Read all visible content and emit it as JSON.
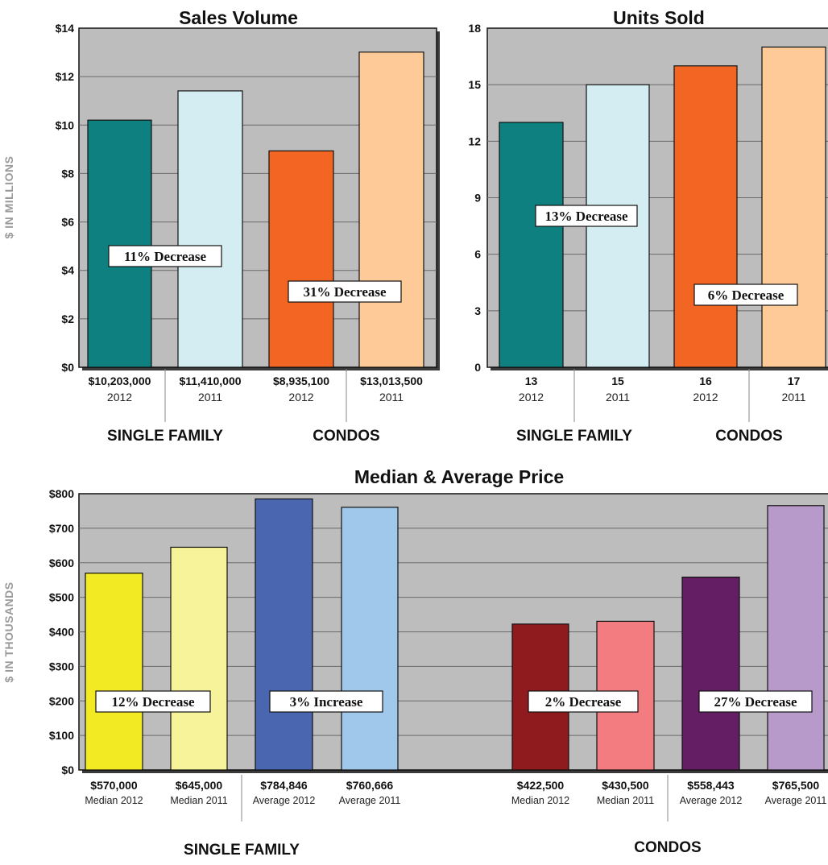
{
  "chart_data": [
    {
      "type": "bar",
      "title": "Sales Volume",
      "ylabel": "$ IN MILLIONS",
      "ylim": [
        0,
        14
      ],
      "yticks": [
        "$0",
        "$2",
        "$4",
        "$6",
        "$8",
        "$10",
        "$12",
        "$14"
      ],
      "grid": true,
      "values": [
        10.203,
        11.41,
        8.9351,
        13.0135
      ],
      "value_labels": [
        "$10,203,000",
        "$11,410,000",
        "$8,935,100",
        "$13,013,500"
      ],
      "sublabels": [
        "2012",
        "2011",
        "2012",
        "2011"
      ],
      "colors": [
        "#0e8080",
        "#d4edf3",
        "#f26522",
        "#fdca98"
      ],
      "groups": [
        "SINGLE FAMILY",
        "CONDOS"
      ],
      "annotations": [
        "11% Decrease",
        "31% Decrease"
      ]
    },
    {
      "type": "bar",
      "title": "Units Sold",
      "ylabel": "",
      "ylim": [
        0,
        18
      ],
      "yticks": [
        "0",
        "3",
        "6",
        "9",
        "12",
        "15",
        "18"
      ],
      "grid": true,
      "values": [
        13,
        15,
        16,
        17
      ],
      "value_labels": [
        "13",
        "15",
        "16",
        "17"
      ],
      "sublabels": [
        "2012",
        "2011",
        "2012",
        "2011"
      ],
      "colors": [
        "#0e8080",
        "#d4edf3",
        "#f26522",
        "#fdca98"
      ],
      "groups": [
        "SINGLE FAMILY",
        "CONDOS"
      ],
      "annotations": [
        "13% Decrease",
        "6% Decrease"
      ]
    },
    {
      "type": "bar",
      "title": "Median & Average Price",
      "ylabel": "$ IN THOUSANDS",
      "ylim": [
        0,
        800
      ],
      "yticks": [
        "$0",
        "$100",
        "$200",
        "$300",
        "$400",
        "$500",
        "$600",
        "$700",
        "$800"
      ],
      "grid": true,
      "values": [
        570,
        645,
        784.846,
        760.666,
        422.5,
        430.5,
        558.443,
        765.5
      ],
      "value_labels": [
        "$570,000",
        "$645,000",
        "$784,846",
        "$760,666",
        "$422,500",
        "$430,500",
        "$558,443",
        "$765,500"
      ],
      "sublabels": [
        "Median 2012",
        "Median 2011",
        "Average 2012",
        "Average 2011",
        "Median 2012",
        "Median 2011",
        "Average 2012",
        "Average 2011"
      ],
      "colors": [
        "#f2ea22",
        "#f7f39a",
        "#4a66b1",
        "#9fc8ea",
        "#8f1b1f",
        "#f27c7f",
        "#631e64",
        "#b79ac9"
      ],
      "groups": [
        "SINGLE FAMILY",
        "CONDOS"
      ],
      "annotations": [
        "12% Decrease",
        "3% Increase",
        "2% Decrease",
        "27% Decrease"
      ]
    }
  ]
}
